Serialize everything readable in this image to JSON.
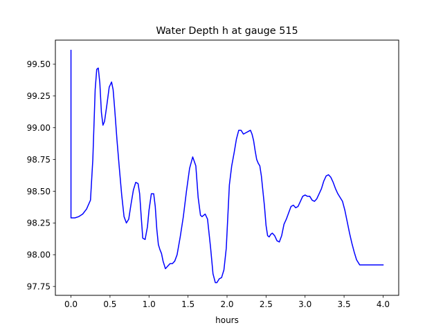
{
  "chart_data": {
    "type": "line",
    "title": "Water Depth h at gauge 515",
    "xlabel": "hours",
    "ylabel": "",
    "xlim": [
      -0.2,
      4.2
    ],
    "ylim": [
      97.68,
      99.69
    ],
    "xticks": [
      0.0,
      0.5,
      1.0,
      1.5,
      2.0,
      2.5,
      3.0,
      3.5,
      4.0
    ],
    "xtick_labels": [
      "0.0",
      "0.5",
      "1.0",
      "1.5",
      "2.0",
      "2.5",
      "3.0",
      "3.5",
      "4.0"
    ],
    "yticks": [
      97.75,
      98.0,
      98.25,
      98.5,
      98.75,
      99.0,
      99.25,
      99.5
    ],
    "ytick_labels": [
      "97.75",
      "98.00",
      "98.25",
      "98.50",
      "98.75",
      "99.00",
      "99.25",
      "99.50"
    ],
    "grid": false,
    "series": [
      {
        "color": "#0000ff",
        "x": [
          0.0,
          0.0,
          0.0,
          0.05,
          0.1,
          0.15,
          0.2,
          0.25,
          0.28,
          0.31,
          0.33,
          0.35,
          0.37,
          0.39,
          0.41,
          0.43,
          0.46,
          0.49,
          0.52,
          0.54,
          0.56,
          0.59,
          0.62,
          0.65,
          0.68,
          0.71,
          0.74,
          0.77,
          0.8,
          0.83,
          0.86,
          0.88,
          0.9,
          0.92,
          0.95,
          0.98,
          1.0,
          1.03,
          1.06,
          1.08,
          1.1,
          1.12,
          1.14,
          1.16,
          1.18,
          1.21,
          1.24,
          1.27,
          1.3,
          1.33,
          1.36,
          1.4,
          1.44,
          1.48,
          1.52,
          1.56,
          1.6,
          1.63,
          1.66,
          1.68,
          1.7,
          1.72,
          1.75,
          1.79,
          1.82,
          1.85,
          1.87,
          1.9,
          1.93,
          1.96,
          1.99,
          2.01,
          2.03,
          2.06,
          2.09,
          2.12,
          2.15,
          2.18,
          2.21,
          2.24,
          2.27,
          2.3,
          2.32,
          2.34,
          2.36,
          2.38,
          2.4,
          2.42,
          2.44,
          2.46,
          2.48,
          2.5,
          2.52,
          2.54,
          2.56,
          2.58,
          2.61,
          2.64,
          2.67,
          2.7,
          2.73,
          2.76,
          2.79,
          2.82,
          2.85,
          2.88,
          2.91,
          2.94,
          2.97,
          3.0,
          3.03,
          3.06,
          3.09,
          3.12,
          3.15,
          3.18,
          3.21,
          3.24,
          3.27,
          3.3,
          3.33,
          3.36,
          3.39,
          3.42,
          3.45,
          3.48,
          3.51,
          3.54,
          3.57,
          3.6,
          3.63,
          3.66,
          3.7,
          3.74,
          3.78,
          3.82,
          3.86,
          3.9,
          3.94,
          3.98,
          4.0
        ],
        "y": [
          99.61,
          98.6,
          98.29,
          98.29,
          98.3,
          98.32,
          98.36,
          98.43,
          98.75,
          99.3,
          99.46,
          99.47,
          99.35,
          99.12,
          99.02,
          99.05,
          99.18,
          99.32,
          99.36,
          99.3,
          99.15,
          98.9,
          98.68,
          98.47,
          98.3,
          98.25,
          98.28,
          98.4,
          98.51,
          98.57,
          98.56,
          98.48,
          98.3,
          98.13,
          98.12,
          98.22,
          98.35,
          98.48,
          98.48,
          98.38,
          98.2,
          98.08,
          98.04,
          98.01,
          97.95,
          97.89,
          97.91,
          97.93,
          97.93,
          97.95,
          98.0,
          98.14,
          98.3,
          98.5,
          98.68,
          98.77,
          98.7,
          98.45,
          98.31,
          98.3,
          98.31,
          98.32,
          98.28,
          98.05,
          97.85,
          97.78,
          97.78,
          97.81,
          97.82,
          97.88,
          98.05,
          98.3,
          98.55,
          98.7,
          98.8,
          98.91,
          98.98,
          98.98,
          98.95,
          98.96,
          98.97,
          98.98,
          98.95,
          98.9,
          98.82,
          98.75,
          98.72,
          98.7,
          98.62,
          98.5,
          98.38,
          98.23,
          98.15,
          98.14,
          98.16,
          98.17,
          98.15,
          98.11,
          98.1,
          98.15,
          98.24,
          98.28,
          98.33,
          98.38,
          98.39,
          98.37,
          98.38,
          98.42,
          98.46,
          98.47,
          98.46,
          98.46,
          98.43,
          98.42,
          98.44,
          98.48,
          98.52,
          98.58,
          98.62,
          98.63,
          98.61,
          98.57,
          98.52,
          98.48,
          98.45,
          98.42,
          98.35,
          98.26,
          98.17,
          98.09,
          98.02,
          97.96,
          97.92,
          97.92,
          97.92,
          97.92,
          97.92,
          97.92,
          97.92,
          97.92,
          97.92
        ]
      }
    ]
  }
}
